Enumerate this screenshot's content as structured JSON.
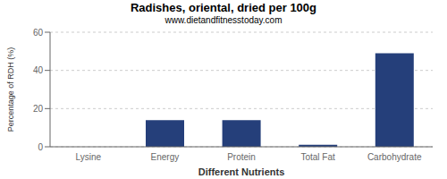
{
  "chart_data": {
    "type": "bar",
    "title": "Radishes, oriental, dried per 100g",
    "subtitle": "www.dietandfitnesstoday.com",
    "xlabel": "Different Nutrients",
    "ylabel": "Percentage of RDH (%)",
    "categories": [
      "Lysine",
      "Energy",
      "Protein",
      "Total Fat",
      "Carbohydrate"
    ],
    "values": [
      0,
      14,
      14,
      1,
      49
    ],
    "color": "#253f7a",
    "ylim": [
      0,
      60
    ],
    "yticks": [
      0,
      20,
      40,
      60
    ],
    "grid": true
  }
}
